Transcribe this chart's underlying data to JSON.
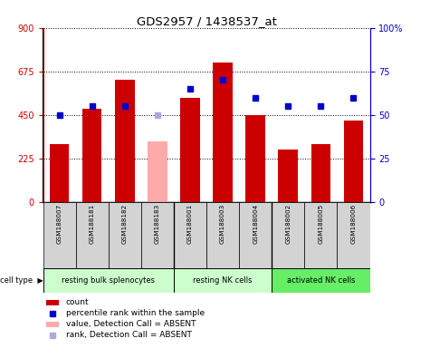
{
  "title": "GDS2957 / 1438537_at",
  "samples": [
    "GSM188007",
    "GSM188181",
    "GSM188182",
    "GSM188183",
    "GSM188001",
    "GSM188003",
    "GSM188004",
    "GSM188002",
    "GSM188005",
    "GSM188006"
  ],
  "counts": [
    300,
    480,
    630,
    315,
    540,
    720,
    450,
    270,
    300,
    420
  ],
  "percentiles": [
    50,
    55,
    55,
    50,
    65,
    70,
    60,
    55,
    55,
    60
  ],
  "absent": [
    false,
    false,
    false,
    true,
    false,
    false,
    false,
    false,
    false,
    false
  ],
  "group_boundaries": [
    {
      "label": "resting bulk splenocytes",
      "start": 0,
      "end": 3,
      "color": "#ccffcc"
    },
    {
      "label": "resting NK cells",
      "start": 4,
      "end": 6,
      "color": "#ccffcc"
    },
    {
      "label": "activated NK cells",
      "start": 7,
      "end": 9,
      "color": "#66ee66"
    }
  ],
  "left_ylim": [
    0,
    900
  ],
  "right_ylim": [
    0,
    100
  ],
  "left_yticks": [
    0,
    225,
    450,
    675,
    900
  ],
  "right_yticks": [
    0,
    25,
    50,
    75,
    100
  ],
  "left_color": "#cc0000",
  "right_color": "#0000cc",
  "bar_color_normal": "#cc0000",
  "bar_color_absent": "#ffaaaa",
  "dot_color_normal": "#0000cc",
  "dot_color_absent": "#aaaadd",
  "gray_box": "#d3d3d3"
}
